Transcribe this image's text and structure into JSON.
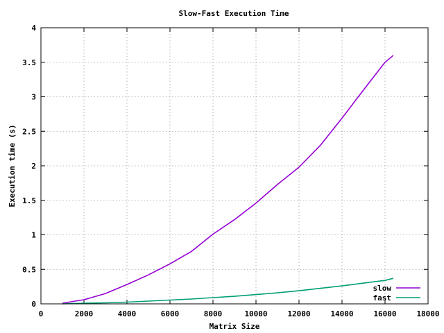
{
  "chart_data": {
    "type": "line",
    "title": "Slow-Fast Execution Time",
    "xlabel": "Matrix Size",
    "ylabel": "Execution time (s)",
    "xlim": [
      0,
      18000
    ],
    "ylim": [
      0,
      4
    ],
    "x_ticks": [
      0,
      2000,
      4000,
      6000,
      8000,
      10000,
      12000,
      14000,
      16000,
      18000
    ],
    "y_ticks": [
      0,
      0.5,
      1,
      1.5,
      2,
      2.5,
      3,
      3.5,
      4
    ],
    "x_tick_labels": [
      "0",
      "2000",
      "4000",
      "6000",
      "8000",
      "10000",
      "12000",
      "14000",
      "16000",
      "18000"
    ],
    "y_tick_labels": [
      "0",
      "0.5",
      "1",
      "1.5",
      "2",
      "2.5",
      "3",
      "3.5",
      "4"
    ],
    "grid": true,
    "legend_position": "bottom-right",
    "series": [
      {
        "name": "slow",
        "color": "#9400d3",
        "x": [
          1000,
          2000,
          3000,
          4000,
          5000,
          6000,
          7000,
          8000,
          9000,
          10000,
          11000,
          12000,
          13000,
          14000,
          15000,
          16000,
          16384
        ],
        "y": [
          0.01,
          0.06,
          0.15,
          0.28,
          0.42,
          0.58,
          0.76,
          1.01,
          1.22,
          1.46,
          1.73,
          1.98,
          2.3,
          2.69,
          3.1,
          3.5,
          3.6
        ]
      },
      {
        "name": "fast",
        "color": "#009e73",
        "x": [
          1000,
          2000,
          3000,
          4000,
          5000,
          6000,
          7000,
          8000,
          9000,
          10000,
          11000,
          12000,
          13000,
          14000,
          15000,
          16000,
          16384
        ],
        "y": [
          0.0,
          0.01,
          0.015,
          0.025,
          0.04,
          0.055,
          0.07,
          0.09,
          0.11,
          0.135,
          0.16,
          0.19,
          0.225,
          0.26,
          0.3,
          0.34,
          0.37
        ]
      }
    ]
  }
}
